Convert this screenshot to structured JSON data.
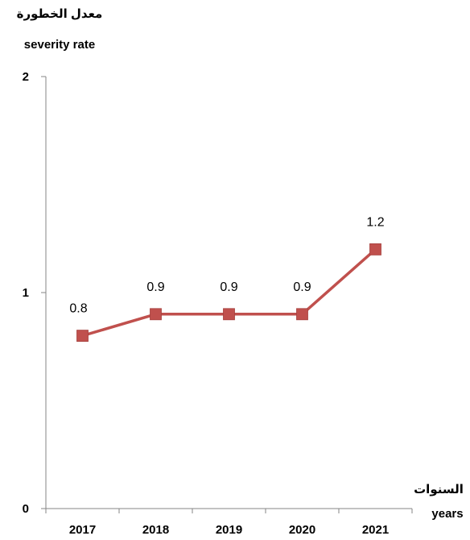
{
  "chart_data": {
    "type": "line",
    "ylabel_ar": "معدل الخطورة",
    "ylabel_en": "severity rate",
    "xlabel_ar": "السنوات",
    "xlabel_en": "years",
    "categories": [
      "2017",
      "2018",
      "2019",
      "2020",
      "2021"
    ],
    "values": [
      0.8,
      0.9,
      0.9,
      0.9,
      1.2
    ],
    "data_labels": [
      "0.8",
      "0.9",
      "0.9",
      "0.9",
      "1.2"
    ],
    "ylim": [
      0,
      2
    ],
    "yticks": [
      0,
      1,
      2
    ],
    "ytick_labels": [
      "0",
      "1",
      "2"
    ],
    "grid": false,
    "legend": "none",
    "series_color": "#C0504D",
    "axis_color": "#868686"
  }
}
